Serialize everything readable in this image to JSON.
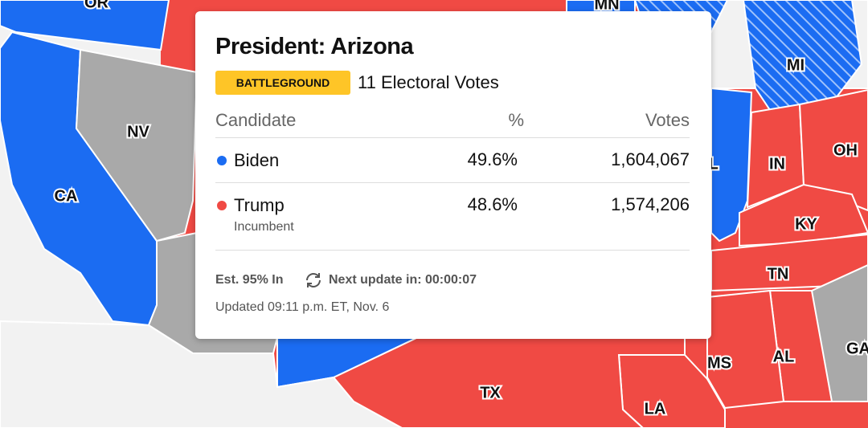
{
  "map": {
    "states": [
      {
        "label": "OR"
      },
      {
        "label": "MN"
      },
      {
        "label": "MI"
      },
      {
        "label": "NV"
      },
      {
        "label": "CA"
      },
      {
        "label": "IL"
      },
      {
        "label": "IN"
      },
      {
        "label": "OH"
      },
      {
        "label": "KY"
      },
      {
        "label": "TN"
      },
      {
        "label": "MS"
      },
      {
        "label": "AL"
      },
      {
        "label": "GA"
      },
      {
        "label": "TX"
      },
      {
        "label": "LA"
      }
    ]
  },
  "popup": {
    "title": "President: Arizona",
    "badge": "BATTLEGROUND",
    "electoral_votes": "11 Electoral Votes",
    "columns": [
      "Candidate",
      "%",
      "Votes"
    ],
    "rows": [
      {
        "name": "Biden",
        "percent": "49.6%",
        "votes": "1,604,067"
      },
      {
        "name": "Trump",
        "note": "Incumbent",
        "percent": "48.6%",
        "votes": "1,574,206"
      }
    ],
    "reporting": "Est. 95% In",
    "next_update": "Next update in: 00:00:07",
    "updated": "Updated 09:11 p.m. ET, Nov. 6"
  }
}
